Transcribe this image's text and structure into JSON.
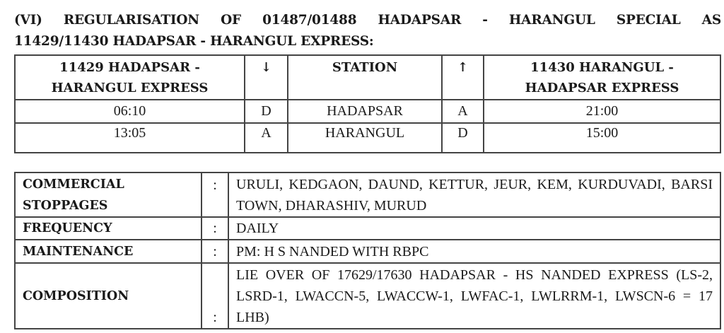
{
  "title_lines": [
    "(VI) REGULARISATION OF 01487/01488 HADAPSAR - HARANGUL SPECIAL AS",
    "11429/11430 HADAPSAR - HARANGUL EXPRESS:"
  ],
  "timetable": {
    "headers": [
      "11429 HADAPSAR - HARANGUL EXPRESS",
      "↓",
      "STATION",
      "↑",
      "11430 HARANGUL - HADAPSAR EXPRESS"
    ],
    "rows": [
      [
        "06:10",
        "D",
        "HADAPSAR",
        "A",
        "21:00"
      ],
      [
        "13:05",
        "A",
        "HARANGUL",
        "D",
        "15:00"
      ]
    ]
  },
  "details": [
    {
      "label": "COMMERCIAL STOPPAGES",
      "sep": ":",
      "value": "URULI, KEDGAON, DAUND, KETTUR, JEUR, KEM, KURDUVADI, BARSI TOWN, DHARASHIV, MURUD"
    },
    {
      "label": "FREQUENCY",
      "sep": ":",
      "value": "DAILY"
    },
    {
      "label": "MAINTENANCE",
      "sep": ":",
      "value": "PM: H S NANDED WITH RBPC"
    },
    {
      "label": "COMPOSITION",
      "sep": ":",
      "value": "LIE OVER OF 17629/17630 HADAPSAR - HS NANDED EXPRESS (LS-2, LSRD-1, LWACCN-5, LWACCW-1, LWFAC-1, LWLRRM-1, LWSCN-6 = 17 LHB)"
    }
  ]
}
